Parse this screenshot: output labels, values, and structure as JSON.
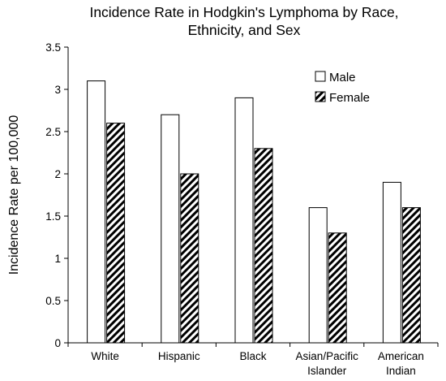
{
  "chart_data": {
    "type": "bar",
    "title_lines": [
      "Incidence Rate in Hodgkin's Lymphoma by Race,",
      "Ethnicity, and Sex"
    ],
    "xlabel": "",
    "ylabel": "Incidence Rate per 100,000",
    "ylim": [
      0,
      3.5
    ],
    "yticks": [
      "0",
      "0.5",
      "1",
      "1.5",
      "2",
      "2.5",
      "3",
      "3.5"
    ],
    "categories": [
      [
        "White"
      ],
      [
        "Hispanic"
      ],
      [
        "Black"
      ],
      [
        "Asian/Pacific",
        "Islander"
      ],
      [
        "American",
        "Indian"
      ]
    ],
    "series": [
      {
        "name": "Male",
        "values": [
          3.1,
          2.7,
          2.9,
          1.6,
          1.9
        ],
        "fill": "#ffffff",
        "pattern": "none"
      },
      {
        "name": "Female",
        "values": [
          2.6,
          2.0,
          2.3,
          1.3,
          1.6
        ],
        "fill": "#000000",
        "pattern": "diagonal-hatch"
      }
    ],
    "grid": false,
    "legend_position": "top-right"
  }
}
